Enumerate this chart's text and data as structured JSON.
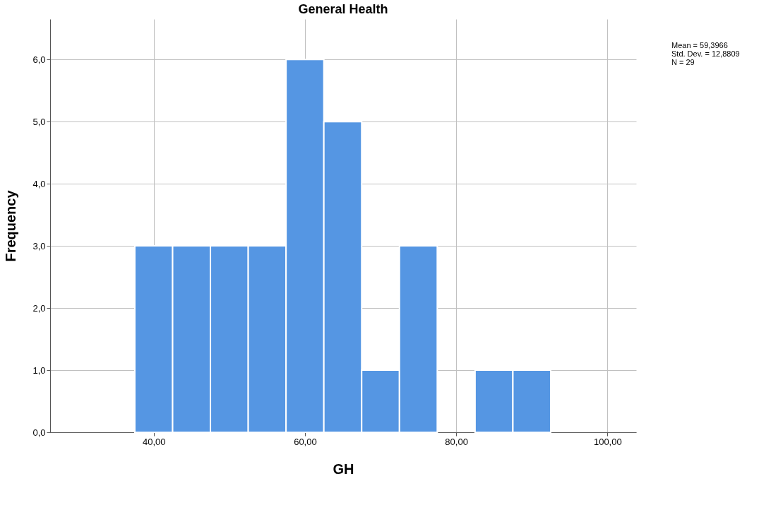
{
  "chart_data": {
    "type": "histogram",
    "title": "General Health",
    "xlabel": "GH",
    "ylabel": "Frequency",
    "bins": [
      37.5,
      42.5,
      47.5,
      52.5,
      57.5,
      62.5,
      67.5,
      72.5,
      77.5,
      82.5,
      87.5,
      92.5
    ],
    "values": [
      3,
      3,
      3,
      3,
      6,
      5,
      1,
      3,
      0,
      1,
      1
    ],
    "color": "#5596e3",
    "xlim": [
      26.3,
      103.8
    ],
    "xticks": [
      {
        "value": 40,
        "label": "40,00"
      },
      {
        "value": 60,
        "label": "60,00"
      },
      {
        "value": 80,
        "label": "80,00"
      },
      {
        "value": 100,
        "label": "100,00"
      }
    ],
    "ylim": [
      0,
      6.65
    ],
    "yticks": [
      {
        "value": 0,
        "label": "0,0"
      },
      {
        "value": 1,
        "label": "1,0"
      },
      {
        "value": 2,
        "label": "2,0"
      },
      {
        "value": 3,
        "label": "3,0"
      },
      {
        "value": 4,
        "label": "4,0"
      },
      {
        "value": 5,
        "label": "5,0"
      },
      {
        "value": 6,
        "label": "6,0"
      }
    ],
    "grid": true,
    "annotations": [
      "Mean = 59,3966",
      "Std. Dev. = 12,8809",
      "N = 29"
    ]
  }
}
